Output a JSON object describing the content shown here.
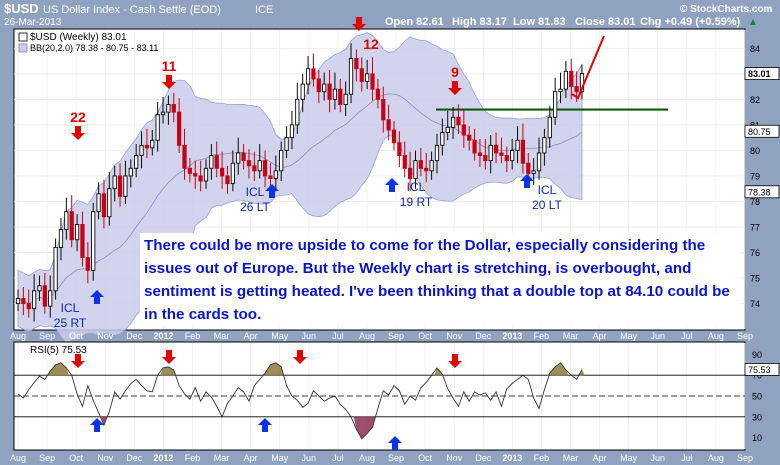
{
  "header": {
    "symbol": "$USD",
    "name": "US Dollar Index - Cash Settle (EOD)",
    "exchange": "ICE",
    "date": "26-Mar-2013",
    "open": "Open 82.61",
    "high": "High 83.17",
    "low": "Low 81.83",
    "close": "Close 83.01",
    "change": "Chg +0.49 (+0.59%)",
    "change_arrow": "▲",
    "brand": "© StockCharts.com"
  },
  "legend": {
    "main": "$USD (Weekly) 83.01",
    "bb": "BB(20,2.0) 78.38 - 80.75 - 83.11",
    "rsi": "RSI(5) 75.53"
  },
  "annotation_text": "There could be more upside to come for the Dollar, especially considering the issues out of Europe.  But the Weekly chart is stretching, is overbought, and sentiment is getting heated.  I've been thinking that a double top at 84.10 could be in the cards too.",
  "price_badges": [
    "83.01",
    "80.75",
    "78.38"
  ],
  "rsi_badge": "75.53",
  "colors": {
    "up": "#0a0a0a",
    "down": "#c80014",
    "band": "#c8cdea",
    "mid": "#7f86b4",
    "green": "#0a5a0a",
    "red_arrow": "#e00000",
    "blue_arrow": "#0a32e6",
    "annot_blue": "#0000cc",
    "rsi_fill": "#8c7a3a",
    "rsi_fill_low": "#8a3050"
  },
  "chart_data": [
    {
      "type": "candlestick",
      "title": "$USD (Weekly) 83.01",
      "ylim": [
        73.2,
        84.6
      ],
      "yticks": [
        74,
        75,
        76,
        77,
        78,
        79,
        80,
        81,
        82,
        83,
        84
      ],
      "x_labels": [
        "Aug",
        "Sep",
        "Oct",
        "Nov",
        "Dec",
        "2012",
        "Feb",
        "Mar",
        "Apr",
        "May",
        "Jun",
        "Jul",
        "Aug",
        "Sep",
        "Oct",
        "Nov",
        "Dec",
        "2013",
        "Feb",
        "Mar",
        "Apr",
        "May",
        "Jun",
        "Jul",
        "Aug",
        "Sep"
      ],
      "series": [
        {
          "name": "$USD",
          "values": [
            74.2,
            74.0,
            73.8,
            74.5,
            74.7,
            73.9,
            74.5,
            76.2,
            76.9,
            77.6,
            76.5,
            77.1,
            75.8,
            75.3,
            77.6,
            78.3,
            77.4,
            78.5,
            79.0,
            78.2,
            79.0,
            79.3,
            79.8,
            80.2,
            80.1,
            80.4,
            81.4,
            81.5,
            81.8,
            81.5,
            80.2,
            79.3,
            79.1,
            79.0,
            78.8,
            79.3,
            79.8,
            79.3,
            79.0,
            78.7,
            79.5,
            79.9,
            79.6,
            79.4,
            79.2,
            79.6,
            79.0,
            78.9,
            79.2,
            80.0,
            80.5,
            81.0,
            82.0,
            82.6,
            83.2,
            82.8,
            82.3,
            82.6,
            82.0,
            82.4,
            81.8,
            82.2,
            83.6,
            83.2,
            82.7,
            83.0,
            82.4,
            82.0,
            81.2,
            80.8,
            80.3,
            79.8,
            79.3,
            78.9,
            79.6,
            79.3,
            79.2,
            79.6,
            80.2,
            80.7,
            80.9,
            81.3,
            81.0,
            80.6,
            80.4,
            79.9,
            79.8,
            79.6,
            80.2,
            79.9,
            79.8,
            79.6,
            80.0,
            80.4,
            79.5,
            79.1,
            79.2,
            79.9,
            80.5,
            81.3,
            82.3,
            82.4,
            83.1,
            82.5,
            82.3,
            83.01
          ]
        }
      ],
      "bollinger": {
        "upper": 83.11,
        "middle": 80.75,
        "lower": 78.38
      },
      "annotations": {
        "counts": [
          "22",
          "11",
          "12",
          "9"
        ],
        "cycle_lows": [
          "ICL\n25 RT",
          "ICL\n26 LT",
          "ICL\n19 RT",
          "ICL\n20 LT"
        ],
        "horizontal_line": 81.6
      }
    },
    {
      "type": "line",
      "title": "RSI(5) 75.53",
      "ylim": [
        0,
        100
      ],
      "yticks": [
        10,
        30,
        50,
        70,
        75.53,
        90
      ],
      "x_labels": [
        "Aug",
        "Sep",
        "Oct",
        "Nov",
        "Dec",
        "2012",
        "Feb",
        "Mar",
        "Apr",
        "May",
        "Jun",
        "Jul",
        "Aug",
        "Sep",
        "Oct",
        "Nov",
        "Dec",
        "2013",
        "Feb",
        "Mar",
        "Apr",
        "May",
        "Jun",
        "Jul",
        "Aug",
        "Sep"
      ],
      "series": [
        {
          "name": "RSI(5)",
          "values": [
            52,
            48,
            56,
            63,
            69,
            66,
            74,
            80,
            82,
            77,
            70,
            52,
            40,
            60,
            46,
            34,
            22,
            35,
            54,
            47,
            55,
            62,
            66,
            60,
            55,
            54,
            70,
            77,
            78,
            75,
            60,
            52,
            47,
            58,
            45,
            54,
            49,
            40,
            30,
            43,
            50,
            58,
            54,
            45,
            60,
            66,
            72,
            80,
            82,
            78,
            60,
            50,
            46,
            39,
            43,
            55,
            50,
            45,
            48,
            50,
            42,
            37,
            30,
            18,
            9,
            14,
            20,
            38,
            55,
            51,
            60,
            55,
            42,
            50,
            46,
            58,
            63,
            70,
            77,
            71,
            57,
            48,
            40,
            54,
            45,
            54,
            51,
            53,
            46,
            54,
            40,
            57,
            62,
            66,
            70,
            66,
            48,
            38,
            56,
            72,
            78,
            82,
            75,
            70,
            66,
            75.53
          ]
        }
      ]
    }
  ]
}
